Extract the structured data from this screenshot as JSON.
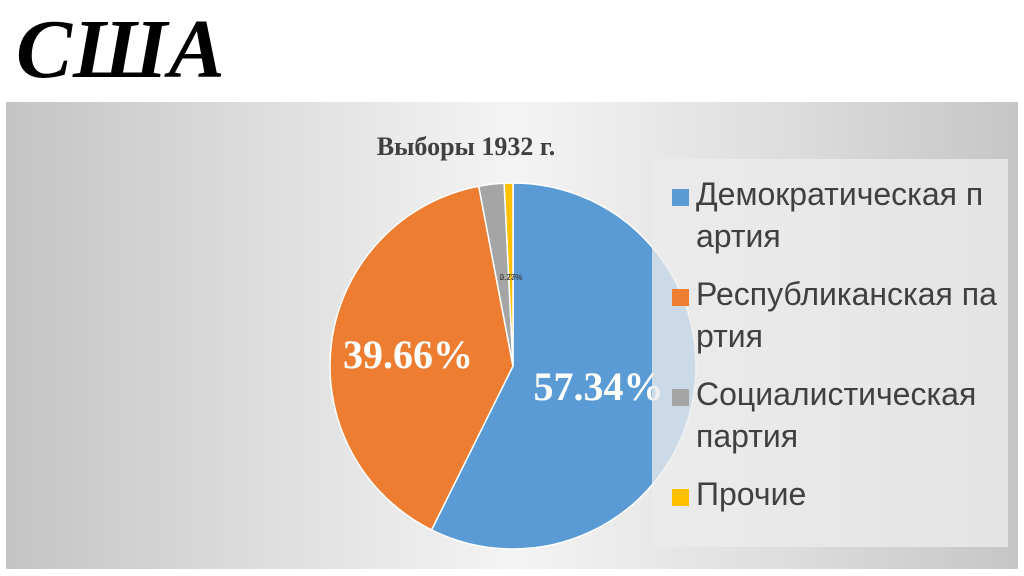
{
  "slide": {
    "title": "США"
  },
  "chart_data": {
    "type": "pie",
    "title": "Выборы 1932 г.",
    "categories": [
      "Демократическая партия",
      "Республиканская партия",
      "Социалистическая партия",
      "Прочие"
    ],
    "values": [
      57.34,
      39.66,
      2.23,
      0.77
    ],
    "data_labels": [
      "57.34%",
      "39.66%",
      "2.23%",
      "0.77%"
    ],
    "colors": [
      "#5b9bd5",
      "#ed7d31",
      "#a5a5a5",
      "#ffc000"
    ],
    "legend_position": "right",
    "start_angle_deg": 0,
    "direction": "clockwise"
  }
}
